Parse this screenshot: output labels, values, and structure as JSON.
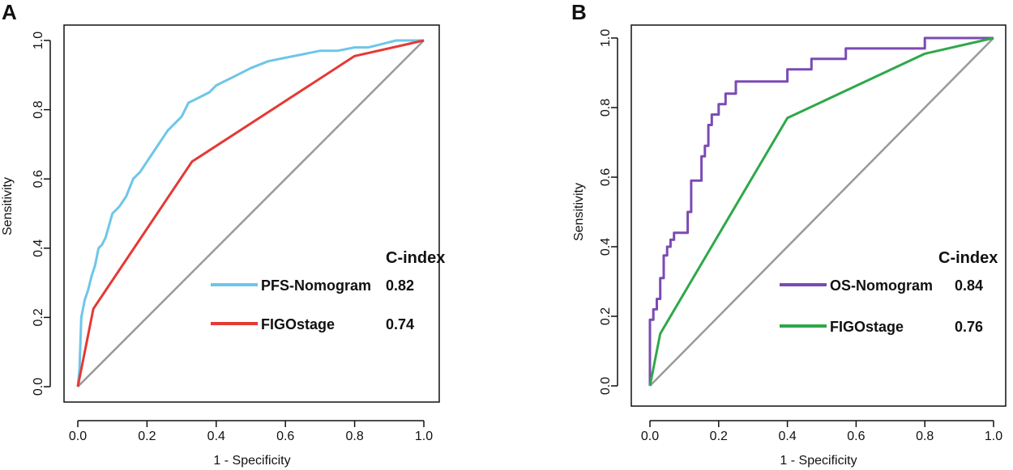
{
  "chart_data": [
    {
      "panel": "A",
      "type": "line",
      "title": "",
      "xlabel": "1 - Specificity",
      "ylabel": "Sensitivity",
      "xlim": [
        0,
        1
      ],
      "ylim": [
        0,
        1
      ],
      "x_ticks": [
        "0.0",
        "0.2",
        "0.4",
        "0.6",
        "0.8",
        "1.0"
      ],
      "y_ticks": [
        "0.0",
        "0.2",
        "0.4",
        "0.6",
        "0.8",
        "1.0"
      ],
      "legend_title": "C-index",
      "legend_position": "bottom-right",
      "reference_line": {
        "color": "#9a9a9a",
        "x": [
          0,
          1
        ],
        "y": [
          0,
          1
        ]
      },
      "series": [
        {
          "name": "PFS-Nomogram",
          "value": "0.82",
          "color": "#6ec6e8",
          "x": [
            0,
            0.005,
            0.01,
            0.02,
            0.03,
            0.04,
            0.05,
            0.06,
            0.07,
            0.08,
            0.1,
            0.12,
            0.14,
            0.16,
            0.18,
            0.2,
            0.22,
            0.24,
            0.26,
            0.28,
            0.3,
            0.32,
            0.34,
            0.36,
            0.38,
            0.4,
            0.42,
            0.44,
            0.46,
            0.5,
            0.55,
            0.6,
            0.65,
            0.7,
            0.75,
            0.8,
            0.84,
            0.88,
            0.92,
            0.96,
            1.0
          ],
          "y": [
            0,
            0.05,
            0.2,
            0.25,
            0.28,
            0.32,
            0.35,
            0.4,
            0.41,
            0.43,
            0.5,
            0.52,
            0.55,
            0.6,
            0.62,
            0.65,
            0.68,
            0.71,
            0.74,
            0.76,
            0.78,
            0.82,
            0.83,
            0.84,
            0.85,
            0.87,
            0.88,
            0.89,
            0.9,
            0.92,
            0.94,
            0.95,
            0.96,
            0.97,
            0.97,
            0.98,
            0.98,
            0.99,
            1.0,
            1.0,
            1.0
          ]
        },
        {
          "name": "FIGOstage",
          "value": "0.74",
          "color": "#e53935",
          "x": [
            0,
            0.045,
            0.33,
            0.8,
            1.0
          ],
          "y": [
            0,
            0.225,
            0.65,
            0.955,
            1.0
          ]
        }
      ]
    },
    {
      "panel": "B",
      "type": "line",
      "title": "",
      "xlabel": "1 - Specificity",
      "ylabel": "Sensitivity",
      "xlim": [
        0,
        1
      ],
      "ylim": [
        0,
        1
      ],
      "x_ticks": [
        "0.0",
        "0.2",
        "0.4",
        "0.6",
        "0.8",
        "1.0"
      ],
      "y_ticks": [
        "0.0",
        "0.2",
        "0.4",
        "0.6",
        "0.8",
        "1.0"
      ],
      "legend_title": "C-index",
      "legend_position": "bottom-right",
      "reference_line": {
        "color": "#9a9a9a",
        "x": [
          0,
          1
        ],
        "y": [
          0,
          1
        ]
      },
      "series": [
        {
          "name": "OS-Nomogram",
          "value": "0.84",
          "color": "#7b4bb3",
          "x": [
            0,
            0,
            0.01,
            0.01,
            0.02,
            0.02,
            0.03,
            0.03,
            0.04,
            0.04,
            0.05,
            0.05,
            0.06,
            0.06,
            0.07,
            0.07,
            0.11,
            0.11,
            0.12,
            0.12,
            0.15,
            0.15,
            0.16,
            0.16,
            0.17,
            0.17,
            0.18,
            0.18,
            0.2,
            0.2,
            0.22,
            0.22,
            0.25,
            0.25,
            0.3,
            0.3,
            0.4,
            0.4,
            0.47,
            0.47,
            0.57,
            0.57,
            0.8,
            0.8,
            1.0
          ],
          "y": [
            0,
            0.19,
            0.19,
            0.22,
            0.22,
            0.25,
            0.25,
            0.31,
            0.31,
            0.375,
            0.375,
            0.4,
            0.4,
            0.42,
            0.42,
            0.44,
            0.44,
            0.5,
            0.5,
            0.59,
            0.59,
            0.66,
            0.66,
            0.69,
            0.69,
            0.75,
            0.75,
            0.78,
            0.78,
            0.81,
            0.81,
            0.84,
            0.84,
            0.875,
            0.875,
            0.875,
            0.875,
            0.91,
            0.91,
            0.94,
            0.94,
            0.97,
            0.97,
            1.0,
            1.0
          ]
        },
        {
          "name": "FIGOstage",
          "value": "0.76",
          "color": "#2ea84a",
          "x": [
            0,
            0.03,
            0.4,
            0.8,
            1.0
          ],
          "y": [
            0,
            0.15,
            0.77,
            0.955,
            1.0
          ]
        }
      ]
    }
  ]
}
